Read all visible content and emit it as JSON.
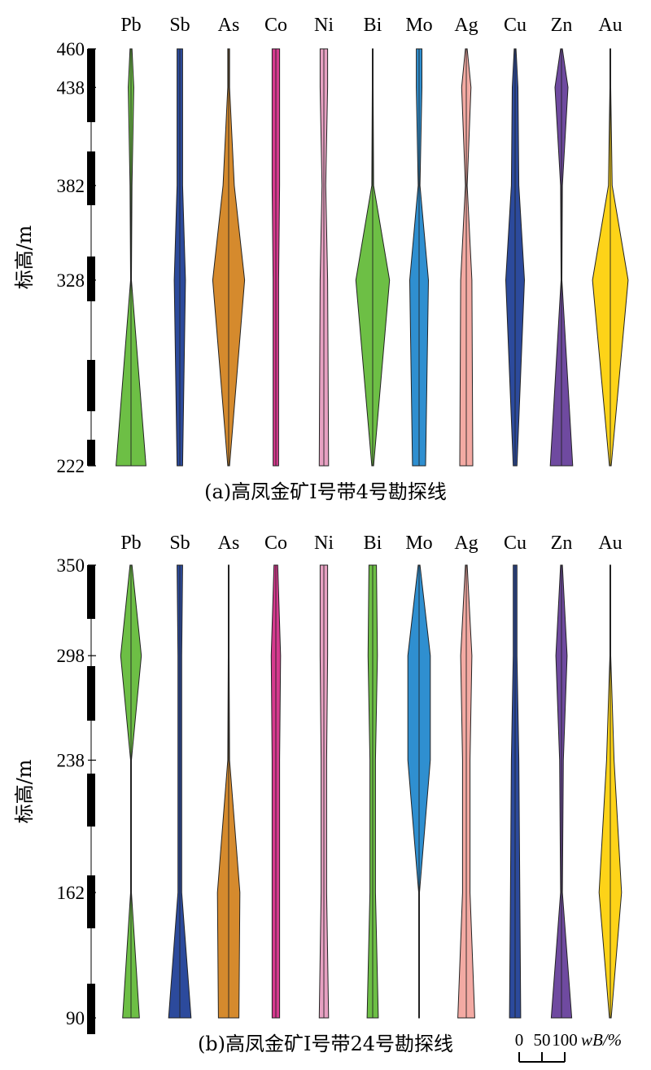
{
  "chart_data": [
    {
      "type": "area",
      "caption": "(a)高凤金矿Ⅰ号带4号勘探线",
      "ylabel": "标高/m",
      "ylim": [
        222,
        460
      ],
      "ticks": [
        460,
        438,
        382,
        328,
        222
      ],
      "elevations": [
        460,
        438,
        382,
        328,
        222
      ],
      "series": [
        {
          "name": "Pb",
          "color": "#6dbf45",
          "widths": [
            5,
            15,
            5,
            2,
            80
          ]
        },
        {
          "name": "Sb",
          "color": "#2c4a9c",
          "widths": [
            15,
            15,
            15,
            30,
            15
          ]
        },
        {
          "name": "As",
          "color": "#d58a2d",
          "widths": [
            5,
            5,
            30,
            85,
            5
          ]
        },
        {
          "name": "Co",
          "color": "#d63a8e",
          "widths": [
            20,
            20,
            20,
            15,
            15
          ]
        },
        {
          "name": "Ni",
          "color": "#e7a1c2",
          "widths": [
            20,
            20,
            10,
            20,
            25
          ]
        },
        {
          "name": "Bi",
          "color": "#6dbf45",
          "widths": [
            2,
            2,
            5,
            90,
            5
          ]
        },
        {
          "name": "Mo",
          "color": "#2f8fd0",
          "widths": [
            15,
            15,
            5,
            50,
            35
          ]
        },
        {
          "name": "Ag",
          "color": "#f3aaa3",
          "widths": [
            5,
            25,
            5,
            30,
            35
          ]
        },
        {
          "name": "Cu",
          "color": "#2c4a9c",
          "widths": [
            5,
            15,
            20,
            50,
            10
          ]
        },
        {
          "name": "Zn",
          "color": "#6f4aa0",
          "widths": [
            5,
            35,
            5,
            2,
            60
          ]
        },
        {
          "name": "Au",
          "color": "#fdd318",
          "widths": [
            2,
            2,
            10,
            95,
            5
          ]
        }
      ]
    },
    {
      "type": "area",
      "caption": "(b)高凤金矿Ⅰ号带24号勘探线",
      "ylabel": "标高/m",
      "ylim": [
        90,
        350
      ],
      "ticks": [
        350,
        298,
        238,
        162,
        90
      ],
      "elevations": [
        350,
        298,
        238,
        162,
        90
      ],
      "series": [
        {
          "name": "Pb",
          "color": "#6dbf45",
          "widths": [
            5,
            55,
            2,
            2,
            45
          ]
        },
        {
          "name": "Sb",
          "color": "#2c4a9c",
          "widths": [
            15,
            10,
            10,
            10,
            60
          ]
        },
        {
          "name": "As",
          "color": "#d58a2d",
          "widths": [
            2,
            2,
            5,
            60,
            55
          ]
        },
        {
          "name": "Co",
          "color": "#d63a8e",
          "widths": [
            10,
            25,
            20,
            20,
            20
          ]
        },
        {
          "name": "Ni",
          "color": "#e7a1c2",
          "widths": [
            20,
            20,
            15,
            15,
            25
          ]
        },
        {
          "name": "Bi",
          "color": "#6dbf45",
          "widths": [
            20,
            25,
            15,
            15,
            30
          ]
        },
        {
          "name": "Mo",
          "color": "#2f8fd0",
          "widths": [
            5,
            60,
            60,
            2,
            2
          ]
        },
        {
          "name": "Ag",
          "color": "#f3aaa3",
          "widths": [
            5,
            30,
            20,
            20,
            45
          ]
        },
        {
          "name": "Cu",
          "color": "#2c4a9c",
          "widths": [
            10,
            10,
            20,
            25,
            30
          ]
        },
        {
          "name": "Zn",
          "color": "#6f4aa0",
          "widths": [
            5,
            30,
            10,
            5,
            55
          ]
        },
        {
          "name": "Au",
          "color": "#fdd318",
          "widths": [
            2,
            2,
            20,
            60,
            5
          ]
        }
      ]
    }
  ],
  "scale": {
    "labels": [
      "0",
      "50",
      "100"
    ],
    "unit": "wB/%"
  }
}
